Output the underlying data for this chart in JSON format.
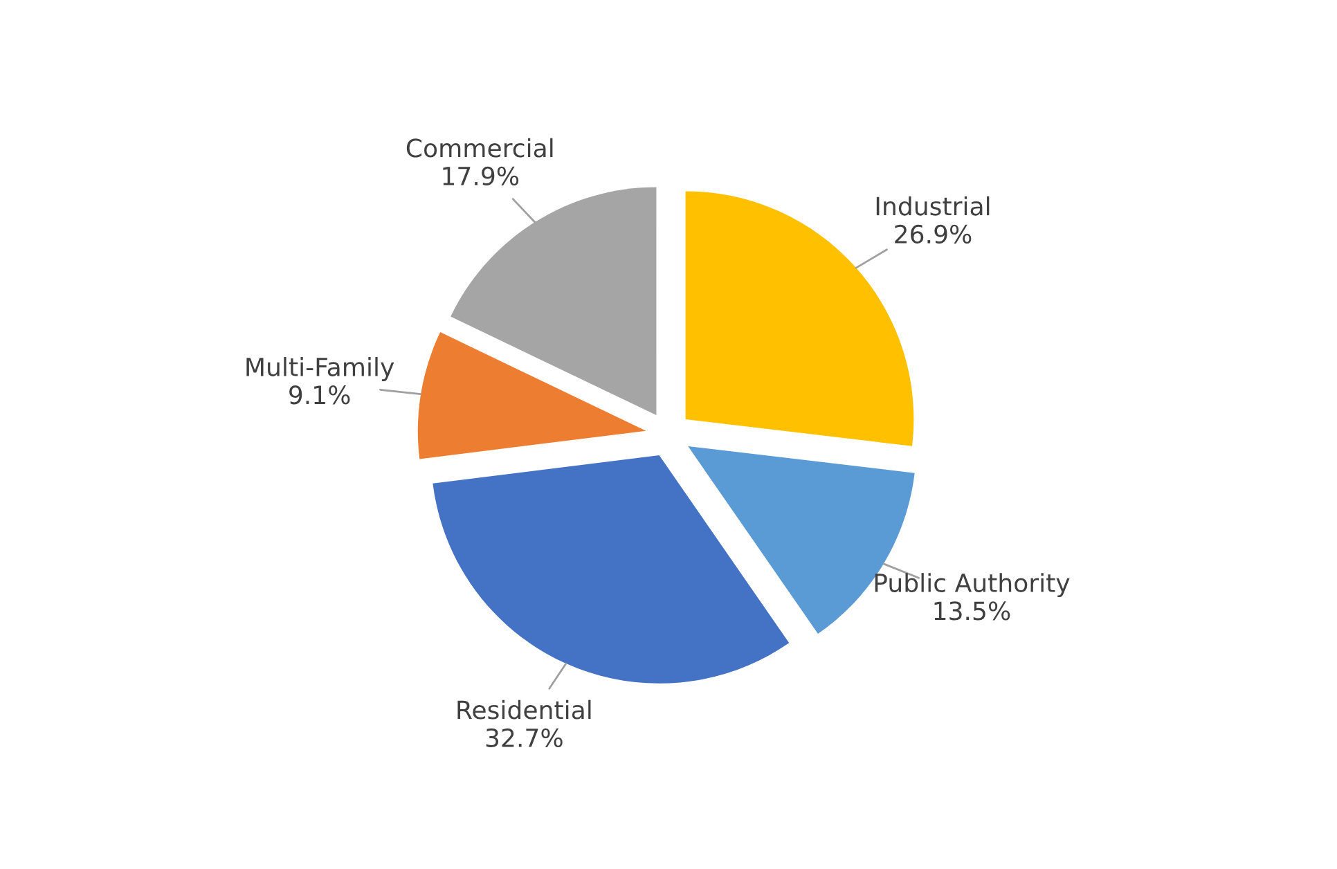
{
  "chart_data": {
    "type": "pie",
    "categories": [
      "Industrial",
      "Public Authority",
      "Residential",
      "Multi-Family",
      "Commercial"
    ],
    "values": [
      26.9,
      13.5,
      32.7,
      9.1,
      17.9
    ],
    "value_labels": [
      "26.9%",
      "13.5%",
      "32.7%",
      "9.1%",
      "17.9%"
    ],
    "colors": [
      "#ffc000",
      "#5b9bd5",
      "#4472c4",
      "#ed7d31",
      "#a5a5a5"
    ]
  }
}
